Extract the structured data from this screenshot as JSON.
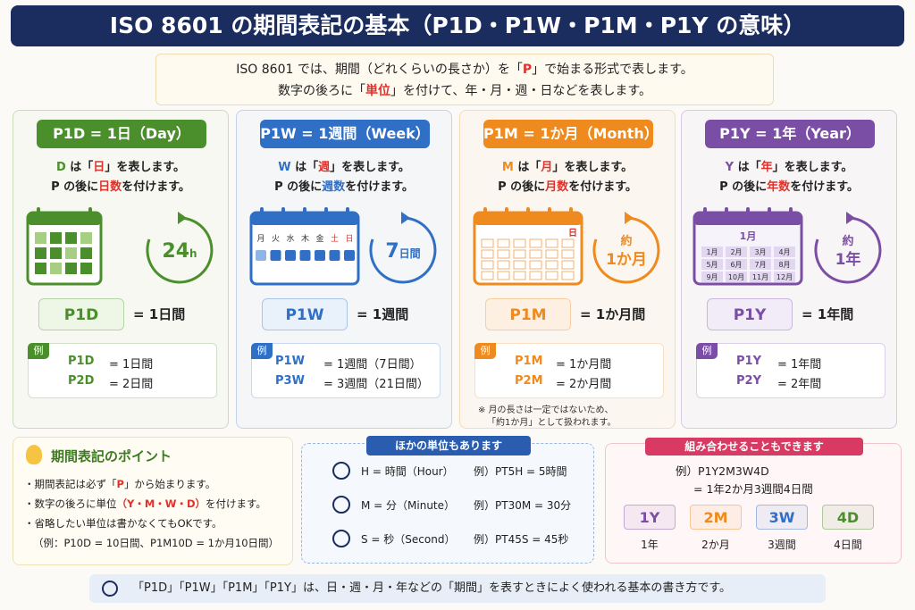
{
  "title": "ISO 8601 の期間表記の基本（P1D・P1W・P1M・P1Y の意味）",
  "intro": {
    "line1": [
      "ISO 8601 では、期間（どれくらいの長さか）を「",
      "P",
      "」で始まる形式で表します。"
    ],
    "line2": [
      "数字の後ろに「",
      "単位",
      "」を付けて、年・月・週・日などを表します。"
    ]
  },
  "cards": [
    {
      "header": "P1D = 1日（Day）",
      "desc1": [
        "D",
        " は「",
        "日",
        "」を表します。"
      ],
      "desc2": [
        "P の後に",
        "日数",
        "を付けます。"
      ],
      "icon": [
        "24",
        "h"
      ],
      "badge": "P1D",
      "equals": "= 1日間",
      "example_label": "例",
      "examples": [
        [
          "P1D",
          "= 1日間"
        ],
        [
          "P2D",
          "= 2日間"
        ]
      ],
      "color": "#4b8f2c",
      "tint": "#eef6e6"
    },
    {
      "header": "P1W = 1週間（Week）",
      "desc1": [
        "W",
        " は「",
        "週",
        "」を表します。"
      ],
      "desc2": [
        "P の後に",
        "週数",
        "を付けます。"
      ],
      "icon": [
        "7",
        "日間"
      ],
      "weekdays": [
        "月",
        "火",
        "水",
        "木",
        "金",
        "土",
        "日"
      ],
      "badge": "P1W",
      "equals": "= 1週間",
      "example_label": "例",
      "examples": [
        [
          "P1W",
          "= 1週間（7日間）"
        ],
        [
          "P3W",
          "= 3週間（21日間）"
        ]
      ],
      "color": "#2f6fc6",
      "tint": "#e9f1fb"
    },
    {
      "header": "P1M = 1か月（Month）",
      "desc1": [
        "M",
        " は「",
        "月",
        "」を表します。"
      ],
      "desc2": [
        "P の後に",
        "月数",
        "を付けます。"
      ],
      "icon": [
        "約",
        "1か月"
      ],
      "calendar_label": "日",
      "badge": "P1M",
      "equals": "= 1か月間",
      "example_label": "例",
      "examples": [
        [
          "P1M",
          "= 1か月間"
        ],
        [
          "P2M",
          "= 2か月間"
        ]
      ],
      "note": [
        "※ 月の長さは一定ではないため、",
        "「約1か月」として扱われます。"
      ],
      "color": "#ee8a1e",
      "tint": "#fdf0e2"
    },
    {
      "header": "P1Y = 1年（Year）",
      "desc1": [
        "Y",
        " は「",
        "年",
        "」を表します。"
      ],
      "desc2": [
        "P の後に",
        "年数",
        "を付けます。"
      ],
      "icon": [
        "約",
        "1年"
      ],
      "calendar_label": "1月",
      "months": [
        "1月",
        "2月",
        "3月",
        "4月",
        "5月",
        "6月",
        "7月",
        "8月",
        "9月",
        "10月",
        "11月",
        "12月"
      ],
      "badge": "P1Y",
      "equals": "= 1年間",
      "example_label": "例",
      "examples": [
        [
          "P1Y",
          "= 1年間"
        ],
        [
          "P2Y",
          "= 2年間"
        ]
      ],
      "color": "#7b4ea6",
      "tint": "#f2ecf8"
    }
  ],
  "points": {
    "title": "期間表記のポイント",
    "items": [
      [
        "・期間表記は必ず「",
        "P",
        "」から始まります。"
      ],
      [
        "・数字の後ろに単位",
        "（Y・M・W・D）",
        "を付けます。"
      ],
      [
        "・省略したい単位は書かなくてもOKです。"
      ],
      [
        "（例：P10D = 10日間、P1M10D = 1か月10日間）"
      ]
    ]
  },
  "units": {
    "title": "ほかの単位もあります",
    "rows": [
      [
        "H = 時間（Hour）",
        "例）PT5H = 5時間"
      ],
      [
        "M = 分（Minute）",
        "例）PT30M = 30分"
      ],
      [
        "S = 秒（Second）",
        "例）PT45S = 45秒"
      ]
    ]
  },
  "combo": {
    "title": "組み合わせることもできます",
    "example": "例）P1Y2M3W4D",
    "result": "= 1年2か月3週間4日間",
    "parts": [
      {
        "code": "1Y",
        "label": "1年",
        "color": "#7b4ea6"
      },
      {
        "code": "2M",
        "label": "2か月",
        "color": "#ee8a1e"
      },
      {
        "code": "3W",
        "label": "3週間",
        "color": "#2f6fc6"
      },
      {
        "code": "4D",
        "label": "4日間",
        "color": "#4b8f2c"
      }
    ]
  },
  "footer": "「P1D」「P1W」「P1M」「P1Y」は、日・週・月・年などの「期間」を表すときによく使われる基本の書き方です。"
}
